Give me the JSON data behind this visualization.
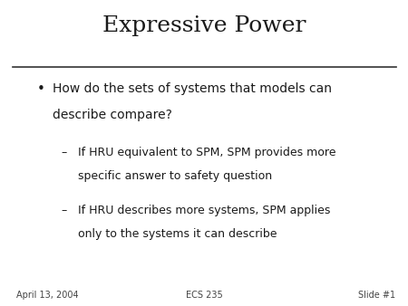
{
  "title": "Expressive Power",
  "slide_bg": "#ffffff",
  "title_fontsize": 18,
  "title_font": "serif",
  "title_color": "#1a1a1a",
  "bullet_fontsize": 10,
  "sub_bullet_fontsize": 9,
  "text_color": "#1a1a1a",
  "footer_left": "April 13, 2004",
  "footer_center": "ECS 235",
  "footer_right": "Slide #1",
  "footer_fontsize": 7,
  "bullet_line1": "How do the sets of systems that models can",
  "bullet_line2": "describe compare?",
  "sub1_line1": "If HRU equivalent to SPM, SPM provides more",
  "sub1_line2": "specific answer to safety question",
  "sub2_line1": "If HRU describes more systems, SPM applies",
  "sub2_line2": "only to the systems it can describe"
}
